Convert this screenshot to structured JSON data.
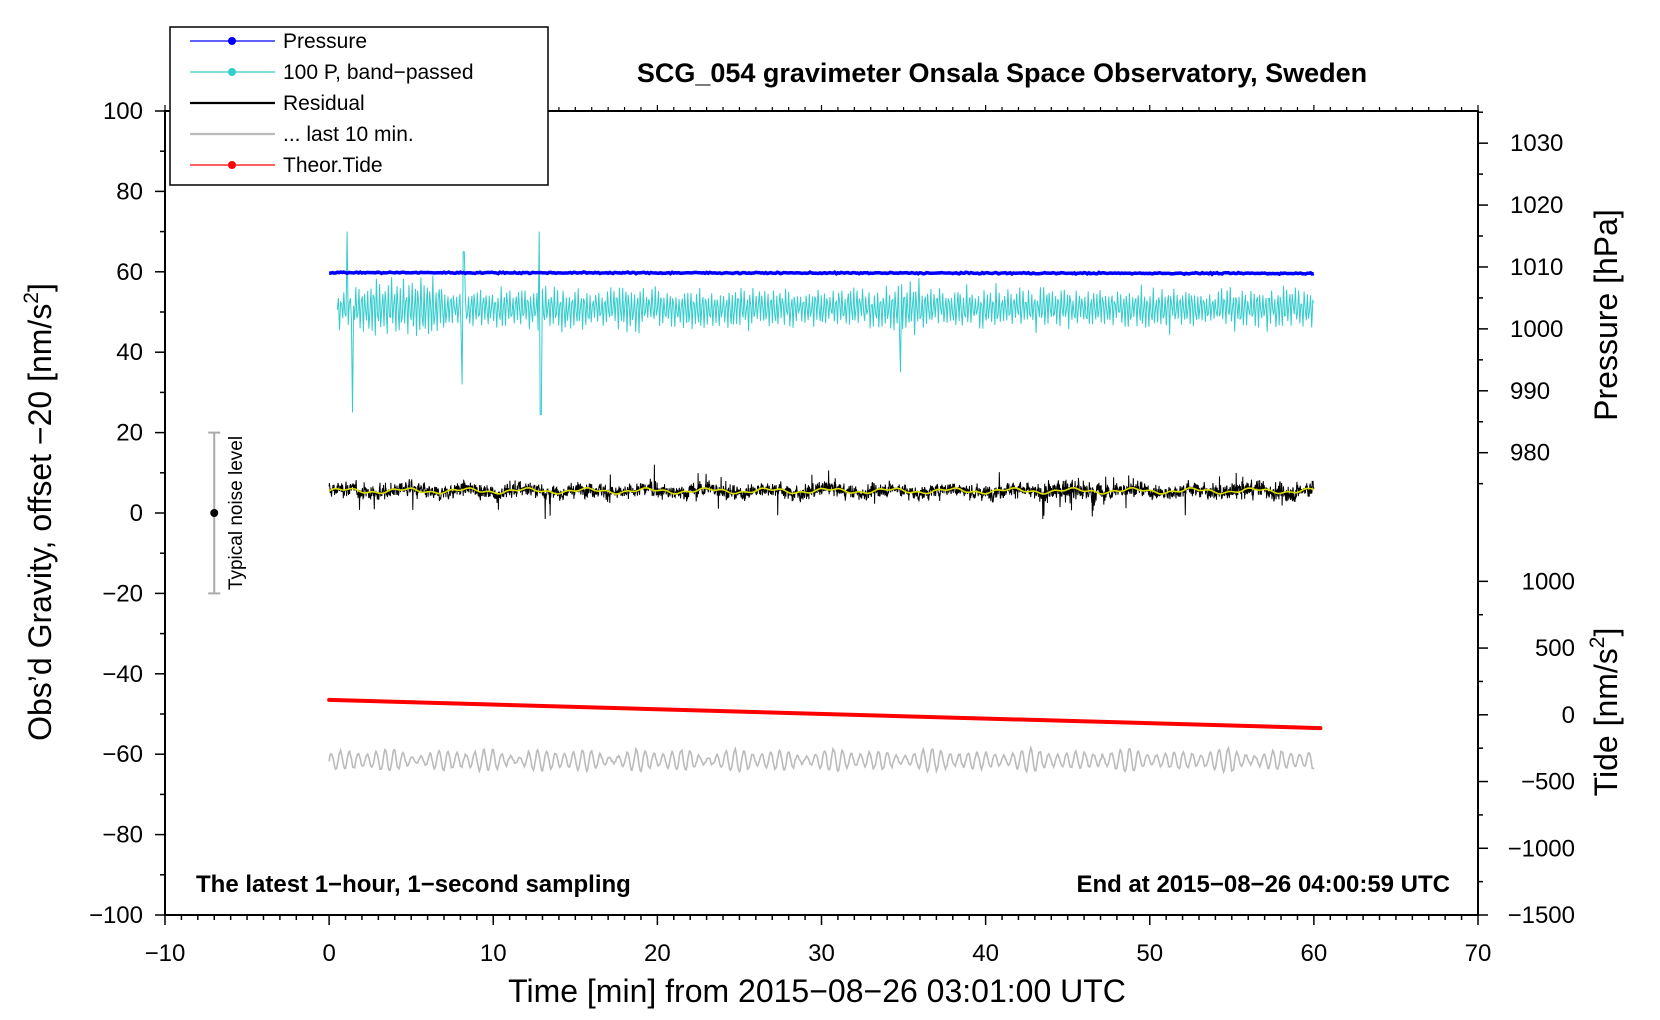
{
  "chart_data": {
    "type": "line",
    "title": "SCG_054 gravimeter Onsala Space Observatory, Sweden",
    "xlabel": "Time [min] from 2015−08−26 03:01:00 UTC",
    "ylabel_left_text": "Obs’d Gravity, offset −20 [nm/s",
    "ylabel_left_sup": "2",
    "ylabel_left_close": "]",
    "ylabel_pressure": "Pressure [hPa]",
    "ylabel_tide_text": "Tide [nm/s",
    "ylabel_tide_sup": "2",
    "ylabel_tide_close": "]",
    "xlim": [
      -10,
      70
    ],
    "ylim": [
      -100,
      100
    ],
    "x_ticks": [
      -10,
      0,
      10,
      20,
      30,
      40,
      50,
      60,
      70
    ],
    "x_tick_labels": [
      "−10",
      "0",
      "10",
      "20",
      "30",
      "40",
      "50",
      "60",
      "70"
    ],
    "y_ticks": [
      -100,
      -80,
      -60,
      -40,
      -20,
      0,
      20,
      40,
      60,
      80,
      100
    ],
    "y_tick_labels": [
      "−100",
      "−80",
      "−60",
      "−40",
      "−20",
      "0",
      "20",
      "40",
      "60",
      "80",
      "100"
    ],
    "pressure_axis": {
      "ticks": [
        980,
        990,
        1000,
        1010,
        1020,
        1030
      ],
      "tick_labels": [
        "980",
        "990",
        "1000",
        "1010",
        "1020",
        "1030"
      ],
      "map": {
        "value_a": 1030,
        "gravity_a": 92,
        "value_b": 980,
        "gravity_b": 15
      }
    },
    "tide_axis": {
      "ticks": [
        -1500,
        -1000,
        -500,
        0,
        500,
        1000
      ],
      "tick_labels": [
        "−1500",
        "−1000",
        "−500",
        "0",
        "500",
        "1000"
      ],
      "map": {
        "value_a": 1000,
        "gravity_a": -17,
        "value_b": -1500,
        "gravity_b": -100
      }
    },
    "bottom_left_text": "The latest 1−hour, 1−second sampling",
    "bottom_right_text": "End at 2015−08−26 04:00:59 UTC",
    "noise_bar": {
      "label": "Typical noise level",
      "x": -7,
      "center": 0,
      "low": -20,
      "high": 20
    },
    "series": [
      {
        "name": "Pressure",
        "color": "#0000ff",
        "style": "line-dots",
        "x_range": [
          0,
          60
        ],
        "level": 59.8,
        "drift": -0.2,
        "noise": 0.3
      },
      {
        "name": "100 P, band−passed",
        "color": "#33cccc",
        "style": "line-dots",
        "x_range": [
          0.5,
          60
        ],
        "level": 51,
        "amplitude": 5,
        "spikes": [
          {
            "x": 1.1,
            "y": 70
          },
          {
            "x": 1.4,
            "y": 25
          },
          {
            "x": 8.2,
            "y": 65
          },
          {
            "x": 8.1,
            "y": 32
          },
          {
            "x": 12.8,
            "y": 70
          },
          {
            "x": 12.9,
            "y": 24.5
          },
          {
            "x": 34.8,
            "y": 35
          }
        ]
      },
      {
        "name": "Residual",
        "color": "#000000",
        "style": "line",
        "x_range": [
          0,
          60
        ],
        "level": 5.5,
        "amplitude": 2.5
      },
      {
        "name": "... last 10 min.",
        "color": "#bbbbbb",
        "style": "line",
        "x_range": [
          0,
          60
        ],
        "level": -61.5,
        "amplitude": 2.2
      },
      {
        "name": "Theor.Tide",
        "color": "#ff0000",
        "style": "line-dots",
        "x_range": [
          0,
          60.4
        ],
        "y_start": -46.5,
        "y_end": -53.5
      }
    ],
    "running_mean_color": "#dddd00",
    "legend_position": "top-left"
  }
}
